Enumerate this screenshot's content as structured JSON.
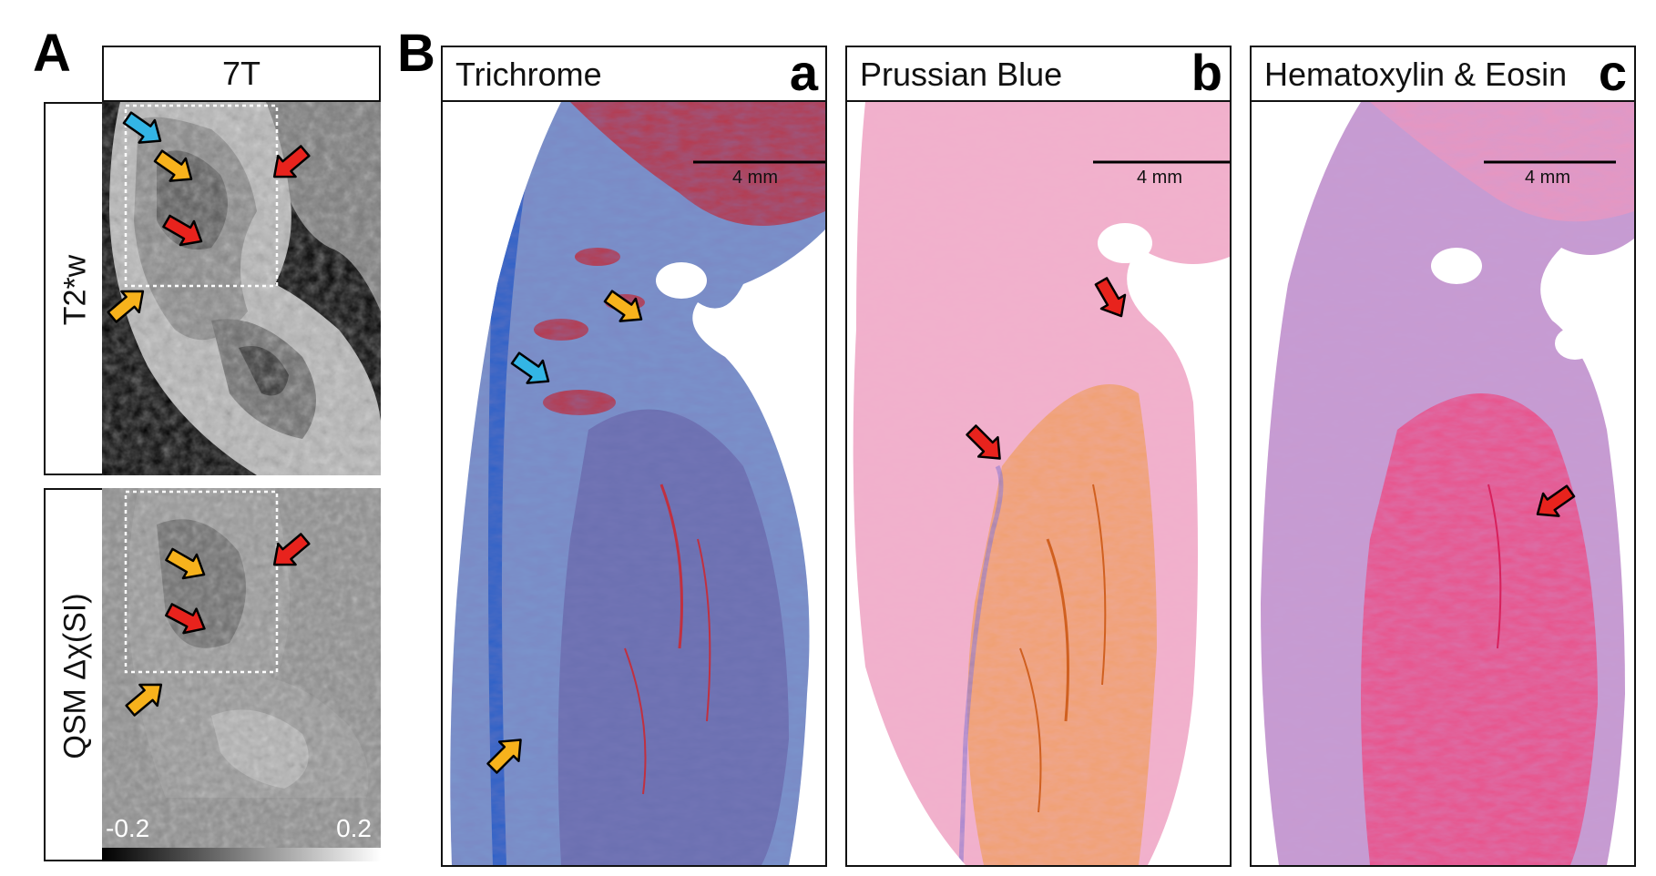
{
  "panel_a": {
    "letter": "A",
    "field_label": "7T",
    "rows": [
      {
        "label": "T2*w"
      },
      {
        "label": "QSM Δχ(SI)"
      }
    ],
    "colorbar": {
      "min_label": "-0.2",
      "max_label": "0.2"
    }
  },
  "panel_b": {
    "letter": "B",
    "stains": [
      {
        "title": "Trichrome",
        "sub_letter": "a",
        "scale_label": "4 mm"
      },
      {
        "title": "Prussian Blue",
        "sub_letter": "b",
        "scale_label": "4 mm"
      },
      {
        "title": "Hematoxylin & Eosin",
        "sub_letter": "c",
        "scale_label": "4 mm"
      }
    ]
  },
  "colors": {
    "arrow_blue": "#33b5e5",
    "arrow_orange": "#f7b21c",
    "arrow_red": "#e8231d",
    "trichrome_blue": "#5b7fc4",
    "trichrome_red": "#b8384a",
    "prussian_pink": "#f2a8c8",
    "prussian_orange": "#f0a070",
    "he_pink": "#e68ab8",
    "he_red": "#e83a78"
  }
}
